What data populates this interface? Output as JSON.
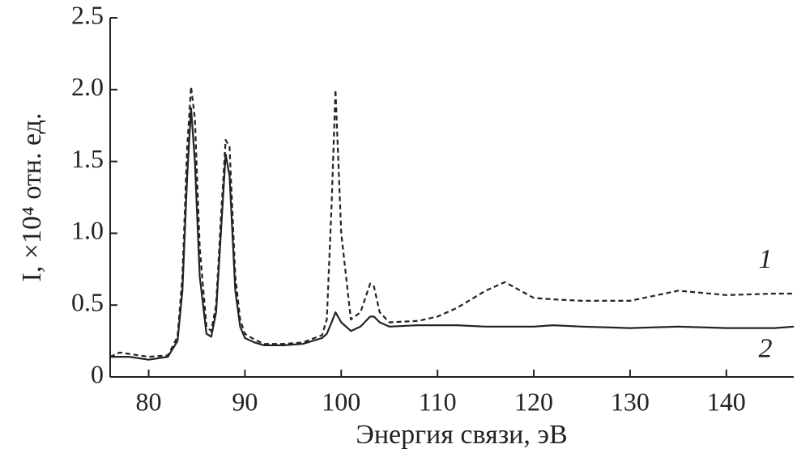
{
  "chart_data": {
    "type": "line",
    "x_label": "Энергия связи, эВ",
    "y_label": "I, ×10⁴ отн. ед.",
    "xlim": [
      76,
      147
    ],
    "xticks": [
      80,
      90,
      100,
      110,
      120,
      130,
      140
    ],
    "ylim": [
      0,
      2.5
    ],
    "yticks": [
      0,
      0.5,
      {
        "value": 1,
        "label": "1.0"
      },
      1.5,
      {
        "value": 2,
        "label": "2.0"
      },
      2.5
    ],
    "x": [
      76,
      77,
      78,
      80,
      82,
      83,
      83.5,
      84,
      84.4,
      84.8,
      85.3,
      86,
      86.5,
      87,
      87.5,
      88,
      88.4,
      89,
      89.5,
      90,
      91,
      92,
      94,
      96,
      98,
      98.5,
      99,
      99.4,
      100,
      101,
      102,
      103,
      103.4,
      104,
      105,
      108,
      110,
      112,
      115,
      117,
      120,
      122,
      125,
      130,
      135,
      140,
      145,
      147
    ],
    "series": [
      {
        "name": "1",
        "color": "#222222",
        "linestyle": "dashed",
        "values": [
          0.14,
          0.17,
          0.16,
          0.14,
          0.15,
          0.28,
          0.7,
          1.6,
          2.02,
          1.8,
          0.9,
          0.35,
          0.32,
          0.5,
          1.1,
          1.65,
          1.6,
          0.7,
          0.4,
          0.3,
          0.26,
          0.23,
          0.23,
          0.24,
          0.29,
          0.4,
          1.2,
          2.0,
          1.0,
          0.4,
          0.45,
          0.65,
          0.63,
          0.45,
          0.38,
          0.39,
          0.42,
          0.48,
          0.6,
          0.66,
          0.55,
          0.54,
          0.53,
          0.53,
          0.6,
          0.57,
          0.58,
          0.58
        ]
      },
      {
        "name": "2",
        "color": "#222222",
        "linestyle": "solid",
        "values": [
          0.14,
          0.14,
          0.14,
          0.12,
          0.14,
          0.25,
          0.6,
          1.4,
          1.87,
          1.5,
          0.7,
          0.3,
          0.28,
          0.45,
          1.0,
          1.55,
          1.4,
          0.6,
          0.35,
          0.27,
          0.24,
          0.22,
          0.22,
          0.23,
          0.27,
          0.3,
          0.38,
          0.45,
          0.38,
          0.32,
          0.35,
          0.42,
          0.42,
          0.38,
          0.35,
          0.36,
          0.36,
          0.36,
          0.35,
          0.35,
          0.35,
          0.36,
          0.35,
          0.34,
          0.35,
          0.34,
          0.34,
          0.35
        ]
      }
    ]
  }
}
